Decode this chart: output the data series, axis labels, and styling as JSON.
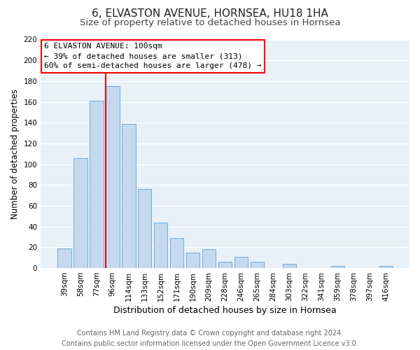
{
  "title": "6, ELVASTON AVENUE, HORNSEA, HU18 1HA",
  "subtitle": "Size of property relative to detached houses in Hornsea",
  "xlabel": "Distribution of detached houses by size in Hornsea",
  "ylabel": "Number of detached properties",
  "categories": [
    "39sqm",
    "58sqm",
    "77sqm",
    "96sqm",
    "114sqm",
    "133sqm",
    "152sqm",
    "171sqm",
    "190sqm",
    "209sqm",
    "228sqm",
    "246sqm",
    "265sqm",
    "284sqm",
    "303sqm",
    "322sqm",
    "341sqm",
    "359sqm",
    "378sqm",
    "397sqm",
    "416sqm"
  ],
  "values": [
    19,
    106,
    161,
    175,
    139,
    76,
    44,
    29,
    15,
    18,
    6,
    11,
    6,
    0,
    4,
    0,
    0,
    2,
    0,
    0,
    2
  ],
  "bar_color": "#c5d8f0",
  "bar_edge_color": "#6baed6",
  "vline_color": "red",
  "vline_x_index": 3,
  "ylim": [
    0,
    220
  ],
  "yticks": [
    0,
    20,
    40,
    60,
    80,
    100,
    120,
    140,
    160,
    180,
    200,
    220
  ],
  "annotation_title": "6 ELVASTON AVENUE: 100sqm",
  "annotation_line1": "← 39% of detached houses are smaller (313)",
  "annotation_line2": "60% of semi-detached houses are larger (478) →",
  "annotation_box_color": "white",
  "annotation_box_edgecolor": "red",
  "footer1": "Contains HM Land Registry data © Crown copyright and database right 2024.",
  "footer2": "Contains public sector information licensed under the Open Government Licence v3.0.",
  "plot_bg_color": "#e8f0f8",
  "fig_bg_color": "#ffffff",
  "grid_color": "#ffffff",
  "title_fontsize": 11,
  "subtitle_fontsize": 9.5,
  "xlabel_fontsize": 9,
  "ylabel_fontsize": 8.5,
  "tick_fontsize": 7.5,
  "footer_fontsize": 7
}
